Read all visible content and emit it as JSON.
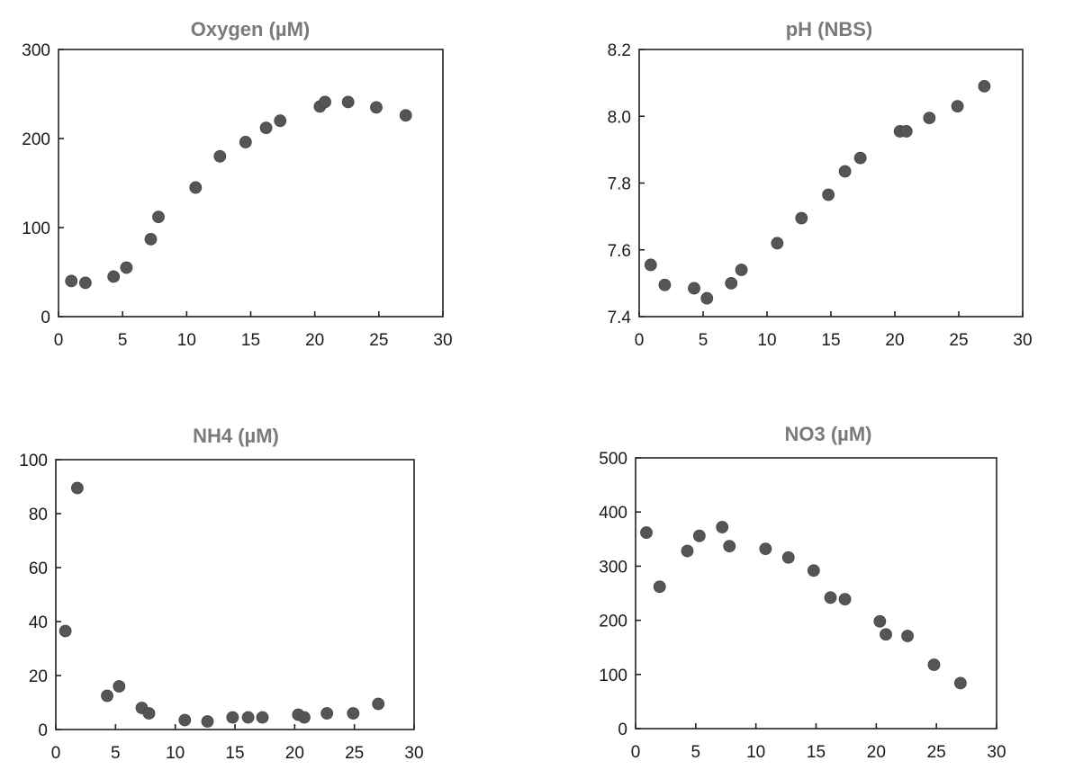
{
  "chart_data": [
    {
      "type": "scatter",
      "title": "Oxygen (µM)",
      "xlabel": "",
      "ylabel": "",
      "xlim": [
        0,
        30
      ],
      "ylim": [
        0,
        300
      ],
      "x_ticks": [
        "0",
        "5",
        "10",
        "15",
        "20",
        "25",
        "30"
      ],
      "y_ticks": [
        "0",
        "100",
        "200",
        "300"
      ],
      "x_tick_values": [
        0,
        5,
        10,
        15,
        20,
        25,
        30
      ],
      "y_tick_values": [
        0,
        100,
        200,
        300
      ],
      "grid": false,
      "series": [
        {
          "points": [
            [
              1.0,
              40
            ],
            [
              2.1,
              38
            ],
            [
              4.3,
              45
            ],
            [
              5.3,
              55
            ],
            [
              7.2,
              87
            ],
            [
              7.8,
              112
            ],
            [
              10.7,
              145
            ],
            [
              12.6,
              180
            ],
            [
              14.6,
              196
            ],
            [
              16.2,
              212
            ],
            [
              17.3,
              220
            ],
            [
              20.4,
              236
            ],
            [
              20.8,
              241
            ],
            [
              22.6,
              241
            ],
            [
              24.8,
              235
            ],
            [
              27.1,
              226
            ]
          ]
        }
      ]
    },
    {
      "type": "scatter",
      "title": "pH (NBS)",
      "xlabel": "",
      "ylabel": "",
      "xlim": [
        0,
        30
      ],
      "ylim": [
        7.4,
        8.2
      ],
      "x_ticks": [
        "0",
        "5",
        "10",
        "15",
        "20",
        "25",
        "30"
      ],
      "y_ticks": [
        "7.4",
        "7.6",
        "7.8",
        "8.0",
        "8.2"
      ],
      "x_tick_values": [
        0,
        5,
        10,
        15,
        20,
        25,
        30
      ],
      "y_tick_values": [
        7.4,
        7.6,
        7.8,
        8.0,
        8.2
      ],
      "grid": false,
      "series": [
        {
          "points": [
            [
              0.9,
              7.555
            ],
            [
              2.0,
              7.495
            ],
            [
              4.3,
              7.485
            ],
            [
              5.3,
              7.455
            ],
            [
              7.2,
              7.5
            ],
            [
              8.0,
              7.54
            ],
            [
              10.8,
              7.62
            ],
            [
              12.7,
              7.695
            ],
            [
              14.8,
              7.765
            ],
            [
              16.1,
              7.835
            ],
            [
              17.3,
              7.875
            ],
            [
              20.4,
              7.955
            ],
            [
              20.9,
              7.955
            ],
            [
              22.7,
              7.995
            ],
            [
              24.9,
              8.03
            ],
            [
              27.0,
              8.09
            ]
          ]
        }
      ]
    },
    {
      "type": "scatter",
      "title": "NH4  (µM)",
      "xlabel": "",
      "ylabel": "",
      "xlim": [
        0,
        30
      ],
      "ylim": [
        0,
        100
      ],
      "x_ticks": [
        "0",
        "5",
        "10",
        "15",
        "20",
        "25",
        "30"
      ],
      "y_ticks": [
        "0",
        "20",
        "40",
        "60",
        "80",
        "100"
      ],
      "x_tick_values": [
        0,
        5,
        10,
        15,
        20,
        25,
        30
      ],
      "y_tick_values": [
        0,
        20,
        40,
        60,
        80,
        100
      ],
      "grid": false,
      "series": [
        {
          "points": [
            [
              0.8,
              36.5
            ],
            [
              1.8,
              89.5
            ],
            [
              4.3,
              12.5
            ],
            [
              5.3,
              16
            ],
            [
              7.2,
              8
            ],
            [
              7.8,
              6
            ],
            [
              10.8,
              3.5
            ],
            [
              12.7,
              3
            ],
            [
              14.8,
              4.5
            ],
            [
              16.1,
              4.5
            ],
            [
              17.3,
              4.5
            ],
            [
              20.3,
              5.5
            ],
            [
              20.8,
              4.5
            ],
            [
              22.7,
              6
            ],
            [
              24.9,
              6
            ],
            [
              27.0,
              9.5
            ]
          ]
        }
      ]
    },
    {
      "type": "scatter",
      "title": "NO3 (µM)",
      "xlabel": "",
      "ylabel": "",
      "xlim": [
        0,
        30
      ],
      "ylim": [
        0,
        500
      ],
      "x_ticks": [
        "0",
        "5",
        "10",
        "15",
        "20",
        "25",
        "30"
      ],
      "y_ticks": [
        "0",
        "100",
        "200",
        "300",
        "400",
        "500"
      ],
      "x_tick_values": [
        0,
        5,
        10,
        15,
        20,
        25,
        30
      ],
      "y_tick_values": [
        0,
        100,
        200,
        300,
        400,
        500
      ],
      "grid": false,
      "series": [
        {
          "points": [
            [
              0.9,
              362
            ],
            [
              2.0,
              262
            ],
            [
              4.3,
              328
            ],
            [
              5.3,
              356
            ],
            [
              7.2,
              372
            ],
            [
              7.8,
              337
            ],
            [
              10.8,
              332
            ],
            [
              12.7,
              316
            ],
            [
              14.8,
              292
            ],
            [
              16.2,
              242
            ],
            [
              17.4,
              239
            ],
            [
              20.3,
              198
            ],
            [
              20.8,
              174
            ],
            [
              22.6,
              171
            ],
            [
              24.8,
              118
            ],
            [
              27.0,
              84
            ]
          ]
        }
      ]
    }
  ]
}
